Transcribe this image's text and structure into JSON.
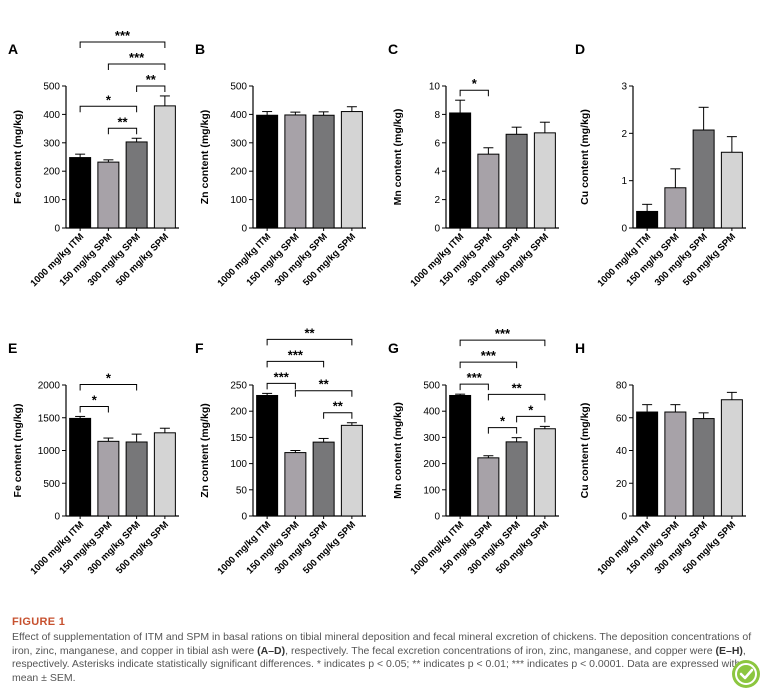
{
  "colors": {
    "bars": [
      "#000000",
      "#a7a2a8",
      "#777779",
      "#d4d4d4"
    ],
    "caption_title": "#c7512f",
    "caption_text": "#555555",
    "badge": "#8cc63f"
  },
  "icons": {
    "badge": "check-shield-icon"
  },
  "chart_data": [
    {
      "panel": "A",
      "type": "bar",
      "categories": [
        "1000 mg/kg ITM",
        "150 mg/kg SPM",
        "300 mg/kg SPM",
        "500 mg/kg SPM"
      ],
      "values": [
        248,
        232,
        303,
        430
      ],
      "errors": [
        12,
        8,
        13,
        35
      ],
      "ylabel": "Fe content (mg/kg)",
      "ylim": [
        0,
        500
      ],
      "yticks": [
        0,
        100,
        200,
        300,
        400,
        500
      ],
      "sig": [
        {
          "from": 0,
          "to": 2,
          "label": "*"
        },
        {
          "from": 1,
          "to": 2,
          "label": "**"
        },
        {
          "from": 2,
          "to": 3,
          "label": "**"
        },
        {
          "from": 1,
          "to": 3,
          "label": "***"
        },
        {
          "from": 0,
          "to": 3,
          "label": "***"
        }
      ]
    },
    {
      "panel": "B",
      "type": "bar",
      "categories": [
        "1000 mg/kg ITM",
        "150 mg/kg SPM",
        "300 mg/kg SPM",
        "500 mg/kg SPM"
      ],
      "values": [
        397,
        398,
        397,
        410
      ],
      "errors": [
        13,
        10,
        12,
        17
      ],
      "ylabel": "Zn content (mg/kg)",
      "ylim": [
        0,
        500
      ],
      "yticks": [
        0,
        100,
        200,
        300,
        400,
        500
      ],
      "sig": []
    },
    {
      "panel": "C",
      "type": "bar",
      "categories": [
        "1000 mg/kg ITM",
        "150 mg/kg SPM",
        "300 mg/kg SPM",
        "500 mg/kg SPM"
      ],
      "values": [
        8.1,
        5.2,
        6.6,
        6.7
      ],
      "errors": [
        0.9,
        0.45,
        0.5,
        0.75
      ],
      "ylabel": "Mn content (mg/kg)",
      "ylim": [
        0,
        10
      ],
      "yticks": [
        0,
        2,
        4,
        6,
        8,
        10
      ],
      "sig": [
        {
          "from": 0,
          "to": 1,
          "label": "*"
        }
      ]
    },
    {
      "panel": "D",
      "type": "bar",
      "categories": [
        "1000 mg/kg ITM",
        "150 mg/kg SPM",
        "300 mg/kg SPM",
        "500 mg/kg SPM"
      ],
      "values": [
        0.35,
        0.85,
        2.07,
        1.6
      ],
      "errors": [
        0.15,
        0.4,
        0.48,
        0.33
      ],
      "ylabel": "Cu content (mg/kg)",
      "ylim": [
        0,
        3
      ],
      "yticks": [
        0,
        1,
        2,
        3
      ],
      "sig": []
    },
    {
      "panel": "E",
      "type": "bar",
      "categories": [
        "1000 mg/kg ITM",
        "150 mg/kg SPM",
        "300 mg/kg SPM",
        "500 mg/kg SPM"
      ],
      "values": [
        1490,
        1140,
        1130,
        1270
      ],
      "errors": [
        30,
        50,
        120,
        70
      ],
      "ylabel": "Fe content (mg/kg)",
      "ylim": [
        0,
        2000
      ],
      "yticks": [
        0,
        500,
        1000,
        1500,
        2000
      ],
      "sig": [
        {
          "from": 0,
          "to": 1,
          "label": "*"
        },
        {
          "from": 0,
          "to": 2,
          "label": "*"
        }
      ]
    },
    {
      "panel": "F",
      "type": "bar",
      "categories": [
        "1000 mg/kg ITM",
        "150 mg/kg SPM",
        "300 mg/kg SPM",
        "500 mg/kg SPM"
      ],
      "values": [
        230,
        121,
        141,
        173
      ],
      "errors": [
        4,
        4,
        7,
        5
      ],
      "ylabel": "Zn content (mg/kg)",
      "ylim": [
        0,
        250
      ],
      "yticks": [
        0,
        50,
        100,
        150,
        200,
        250
      ],
      "sig": [
        {
          "from": 0,
          "to": 1,
          "label": "***"
        },
        {
          "from": 1,
          "to": 3,
          "label": "**"
        },
        {
          "from": 2,
          "to": 3,
          "label": "**"
        },
        {
          "from": 0,
          "to": 2,
          "label": "***"
        },
        {
          "from": 0,
          "to": 3,
          "label": "**"
        }
      ]
    },
    {
      "panel": "G",
      "type": "bar",
      "categories": [
        "1000 mg/kg ITM",
        "150 mg/kg SPM",
        "300 mg/kg SPM",
        "500 mg/kg SPM"
      ],
      "values": [
        460,
        222,
        283,
        333
      ],
      "errors": [
        5,
        8,
        16,
        9
      ],
      "ylabel": "Mn content (mg/kg)",
      "ylim": [
        0,
        500
      ],
      "yticks": [
        0,
        100,
        200,
        300,
        400,
        500
      ],
      "sig": [
        {
          "from": 0,
          "to": 1,
          "label": "***"
        },
        {
          "from": 1,
          "to": 3,
          "label": "**"
        },
        {
          "from": 1,
          "to": 2,
          "label": "*"
        },
        {
          "from": 2,
          "to": 3,
          "label": "*"
        },
        {
          "from": 0,
          "to": 2,
          "label": "***"
        },
        {
          "from": 0,
          "to": 3,
          "label": "***"
        }
      ]
    },
    {
      "panel": "H",
      "type": "bar",
      "categories": [
        "1000 mg/kg ITM",
        "150 mg/kg SPM",
        "300 mg/kg SPM",
        "500 mg/kg SPM"
      ],
      "values": [
        63.5,
        63.5,
        59.5,
        71
      ],
      "errors": [
        4.5,
        4.5,
        3.5,
        4.5
      ],
      "ylabel": "Cu content (mg/kg)",
      "ylim": [
        0,
        80
      ],
      "yticks": [
        0,
        20,
        40,
        60,
        80
      ],
      "sig": []
    }
  ],
  "caption": {
    "title": "FIGURE 1",
    "p1": "Effect of supplementation of ITM and SPM in basal rations on tibial mineral deposition and fecal mineral excretion of chickens. The deposition concentrations of iron, zinc, manganese, and copper in tibial ash were ",
    "ref1": "(A–D)",
    "p2": ", respectively. The fecal excretion concentrations of iron, zinc, manganese, and copper were ",
    "ref2": "(E–H)",
    "p3": ", respectively. Asterisks indicate statistically significant differences. * indicates ",
    "p4": "p < 0.05; ** indicates p < 0.01; *** indicates p < 0.0001. Data are expressed with mean ± SEM."
  }
}
